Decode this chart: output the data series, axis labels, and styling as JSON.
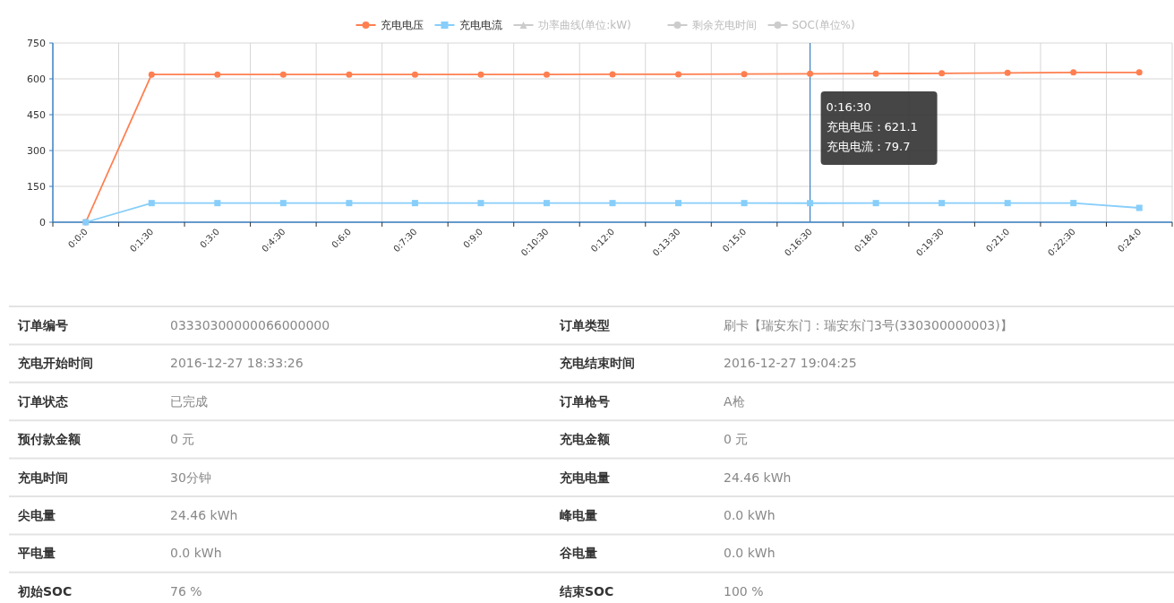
{
  "chart_data": [
    {
      "type": "line",
      "categories": [
        "0:0:0",
        "0:1:30",
        "0:3:0",
        "0:4:30",
        "0:6:0",
        "0:7:30",
        "0:9:0",
        "0:10:30",
        "0:12:0",
        "0:13:30",
        "0:15:0",
        "0:16:30",
        "0:18:0",
        "0:19:30",
        "0:21:0",
        "0:22:30",
        "0:24:0"
      ],
      "series": [
        {
          "name": "充电电压",
          "color": "#ff7f50",
          "marker": "circle",
          "values": [
            0,
            618,
            618,
            618,
            618,
            618,
            618,
            618,
            619,
            619,
            620,
            621.1,
            622,
            623,
            625,
            627,
            627
          ]
        },
        {
          "name": "充电电流",
          "color": "#87cefa",
          "marker": "square",
          "values": [
            0,
            80,
            80,
            80,
            80,
            80,
            80,
            80,
            80,
            80,
            80,
            79.7,
            80,
            80,
            80,
            80,
            60
          ]
        },
        {
          "name": "功率曲线(单位:kW)",
          "color": "#cccccc",
          "marker": "triangle",
          "values": [
            null,
            null,
            null,
            null,
            null,
            null,
            null,
            null,
            null,
            null,
            null,
            null,
            null,
            null,
            null,
            null,
            null
          ]
        },
        {
          "name": "剩余充电时间",
          "color": "#cccccc",
          "marker": "circle",
          "values": [
            null,
            null,
            null,
            null,
            null,
            null,
            null,
            null,
            null,
            null,
            null,
            null,
            null,
            null,
            null,
            null,
            null
          ]
        },
        {
          "name": "SOC(单位%)",
          "color": "#cccccc",
          "marker": "circle",
          "values": [
            null,
            null,
            null,
            null,
            null,
            null,
            null,
            null,
            null,
            null,
            null,
            null,
            null,
            null,
            null,
            null,
            null
          ]
        }
      ],
      "ylim": [
        0,
        750
      ],
      "yticks": [
        0,
        150,
        300,
        450,
        600,
        750
      ],
      "grid": true,
      "legend": "top",
      "line_style": "solid",
      "ref_lines": [
        {
          "axis": "x",
          "value": "0:16:30",
          "color": "#3a7fc1"
        }
      ],
      "annotations": [
        "0:16:30",
        "充电电压：621.1",
        "充电电流：79.7"
      ]
    },
    {
      "type": "other",
      "annotations": [
        "订单编号",
        "03330300000066000000",
        "订单类型",
        "刷卡【瑞安东门：瑞安东门3号(330300000003)】",
        "充电开始时间",
        "2016-12-27 18:33:26",
        "充电结束时间",
        "2016-12-27 19:04:25",
        "订单状态",
        "已完成",
        "订单枪号",
        "A枪",
        "预付款金额",
        "0 元",
        "充电金额",
        "0 元",
        "充电时间",
        "30分钟",
        "充电电量",
        "24.46 kWh",
        "尖电量",
        "24.46 kWh",
        "峰电量",
        "0.0 kWh",
        "平电量",
        "0.0 kWh",
        "谷电量",
        "0.0 kWh",
        "初始SOC",
        "76 %",
        "结束SOC",
        "100 %"
      ]
    }
  ]
}
